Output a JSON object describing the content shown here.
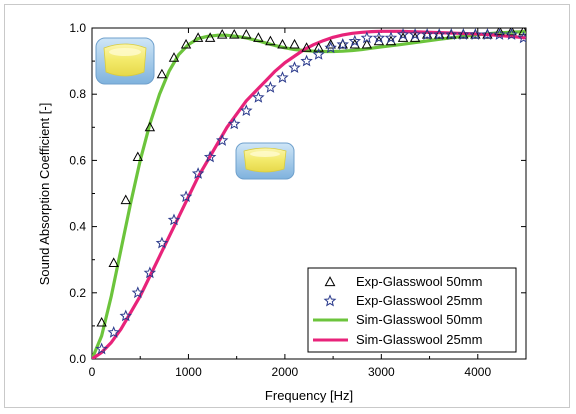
{
  "chart_data": {
    "type": "line",
    "xlabel": "Frequency [Hz]",
    "ylabel": "Sound Absorption Coefficient [-]",
    "xlim": [
      0,
      4500
    ],
    "ylim": [
      0.0,
      1.0
    ],
    "xticks": [
      0,
      1000,
      2000,
      3000,
      4000
    ],
    "xtick_labels": [
      "0",
      "1000",
      "2000",
      "3000",
      "4000"
    ],
    "yticks": [
      0.0,
      0.2,
      0.4,
      0.6,
      0.8,
      1.0
    ],
    "ytick_labels": [
      "0.0",
      "0.2",
      "0.4",
      "0.6",
      "0.8",
      "1.0"
    ],
    "legend_position": "bottom-right",
    "series": [
      {
        "name": "Exp-Glasswool 50mm",
        "kind": "markers",
        "marker": "triangle",
        "color": "#000000",
        "x": [
          100,
          225,
          350,
          475,
          600,
          725,
          850,
          975,
          1100,
          1225,
          1350,
          1475,
          1600,
          1725,
          1850,
          1975,
          2100,
          2225,
          2350,
          2475,
          2600,
          2725,
          2850,
          2975,
          3100,
          3225,
          3350,
          3475,
          3600,
          3725,
          3850,
          3975,
          4100,
          4225,
          4350,
          4475
        ],
        "y": [
          0.11,
          0.29,
          0.48,
          0.61,
          0.7,
          0.86,
          0.91,
          0.95,
          0.97,
          0.97,
          0.98,
          0.98,
          0.98,
          0.97,
          0.96,
          0.95,
          0.95,
          0.94,
          0.94,
          0.95,
          0.95,
          0.95,
          0.95,
          0.96,
          0.96,
          0.97,
          0.97,
          0.98,
          0.98,
          0.98,
          0.98,
          0.98,
          0.98,
          0.99,
          0.99,
          0.99
        ]
      },
      {
        "name": "Exp-Glasswool 25mm",
        "kind": "markers",
        "marker": "star",
        "color": "#2b3a8c",
        "x": [
          100,
          225,
          350,
          475,
          600,
          725,
          850,
          975,
          1100,
          1225,
          1350,
          1475,
          1600,
          1725,
          1850,
          1975,
          2100,
          2225,
          2350,
          2475,
          2600,
          2725,
          2850,
          2975,
          3100,
          3225,
          3350,
          3475,
          3600,
          3725,
          3850,
          3975,
          4100,
          4225,
          4350,
          4475
        ],
        "y": [
          0.03,
          0.08,
          0.13,
          0.2,
          0.26,
          0.35,
          0.42,
          0.49,
          0.56,
          0.61,
          0.66,
          0.71,
          0.75,
          0.79,
          0.82,
          0.85,
          0.88,
          0.9,
          0.92,
          0.94,
          0.95,
          0.96,
          0.97,
          0.97,
          0.97,
          0.98,
          0.98,
          0.98,
          0.98,
          0.98,
          0.98,
          0.98,
          0.98,
          0.98,
          0.98,
          0.97
        ]
      },
      {
        "name": "Sim-Glasswool 50mm",
        "kind": "line",
        "color": "#6cc43c",
        "x": [
          0,
          100,
          200,
          300,
          400,
          500,
          600,
          700,
          800,
          900,
          1000,
          1100,
          1200,
          1300,
          1400,
          1500,
          1600,
          1700,
          1800,
          1900,
          2000,
          2100,
          2200,
          2300,
          2400,
          2500,
          2600,
          2700,
          2800,
          2900,
          3000,
          3200,
          3400,
          3600,
          3800,
          4000,
          4200,
          4400,
          4500
        ],
        "y": [
          0.0,
          0.07,
          0.19,
          0.33,
          0.47,
          0.6,
          0.71,
          0.8,
          0.87,
          0.92,
          0.95,
          0.968,
          0.975,
          0.978,
          0.978,
          0.975,
          0.97,
          0.963,
          0.955,
          0.947,
          0.94,
          0.935,
          0.932,
          0.93,
          0.929,
          0.929,
          0.93,
          0.932,
          0.935,
          0.939,
          0.943,
          0.95,
          0.958,
          0.966,
          0.973,
          0.98,
          0.985,
          0.988,
          0.989
        ]
      },
      {
        "name": "Sim-Glasswool 25mm",
        "kind": "line",
        "color": "#e8237a",
        "x": [
          0,
          100,
          200,
          300,
          400,
          500,
          600,
          700,
          800,
          900,
          1000,
          1100,
          1200,
          1300,
          1400,
          1500,
          1600,
          1700,
          1800,
          1900,
          2000,
          2100,
          2200,
          2300,
          2400,
          2500,
          2600,
          2700,
          2800,
          2900,
          3000,
          3200,
          3400,
          3600,
          3800,
          4000,
          4200,
          4400,
          4500
        ],
        "y": [
          0.0,
          0.02,
          0.05,
          0.09,
          0.14,
          0.19,
          0.25,
          0.31,
          0.37,
          0.43,
          0.49,
          0.55,
          0.6,
          0.65,
          0.7,
          0.74,
          0.78,
          0.81,
          0.84,
          0.87,
          0.895,
          0.915,
          0.935,
          0.95,
          0.962,
          0.972,
          0.979,
          0.984,
          0.987,
          0.989,
          0.99,
          0.99,
          0.988,
          0.986,
          0.984,
          0.982,
          0.978,
          0.973,
          0.97
        ]
      }
    ]
  },
  "images": [
    {
      "name": "glasswool-50mm-sample-icon",
      "color": "#f2ea78"
    },
    {
      "name": "glasswool-25mm-sample-icon",
      "color": "#f2ea78"
    }
  ]
}
